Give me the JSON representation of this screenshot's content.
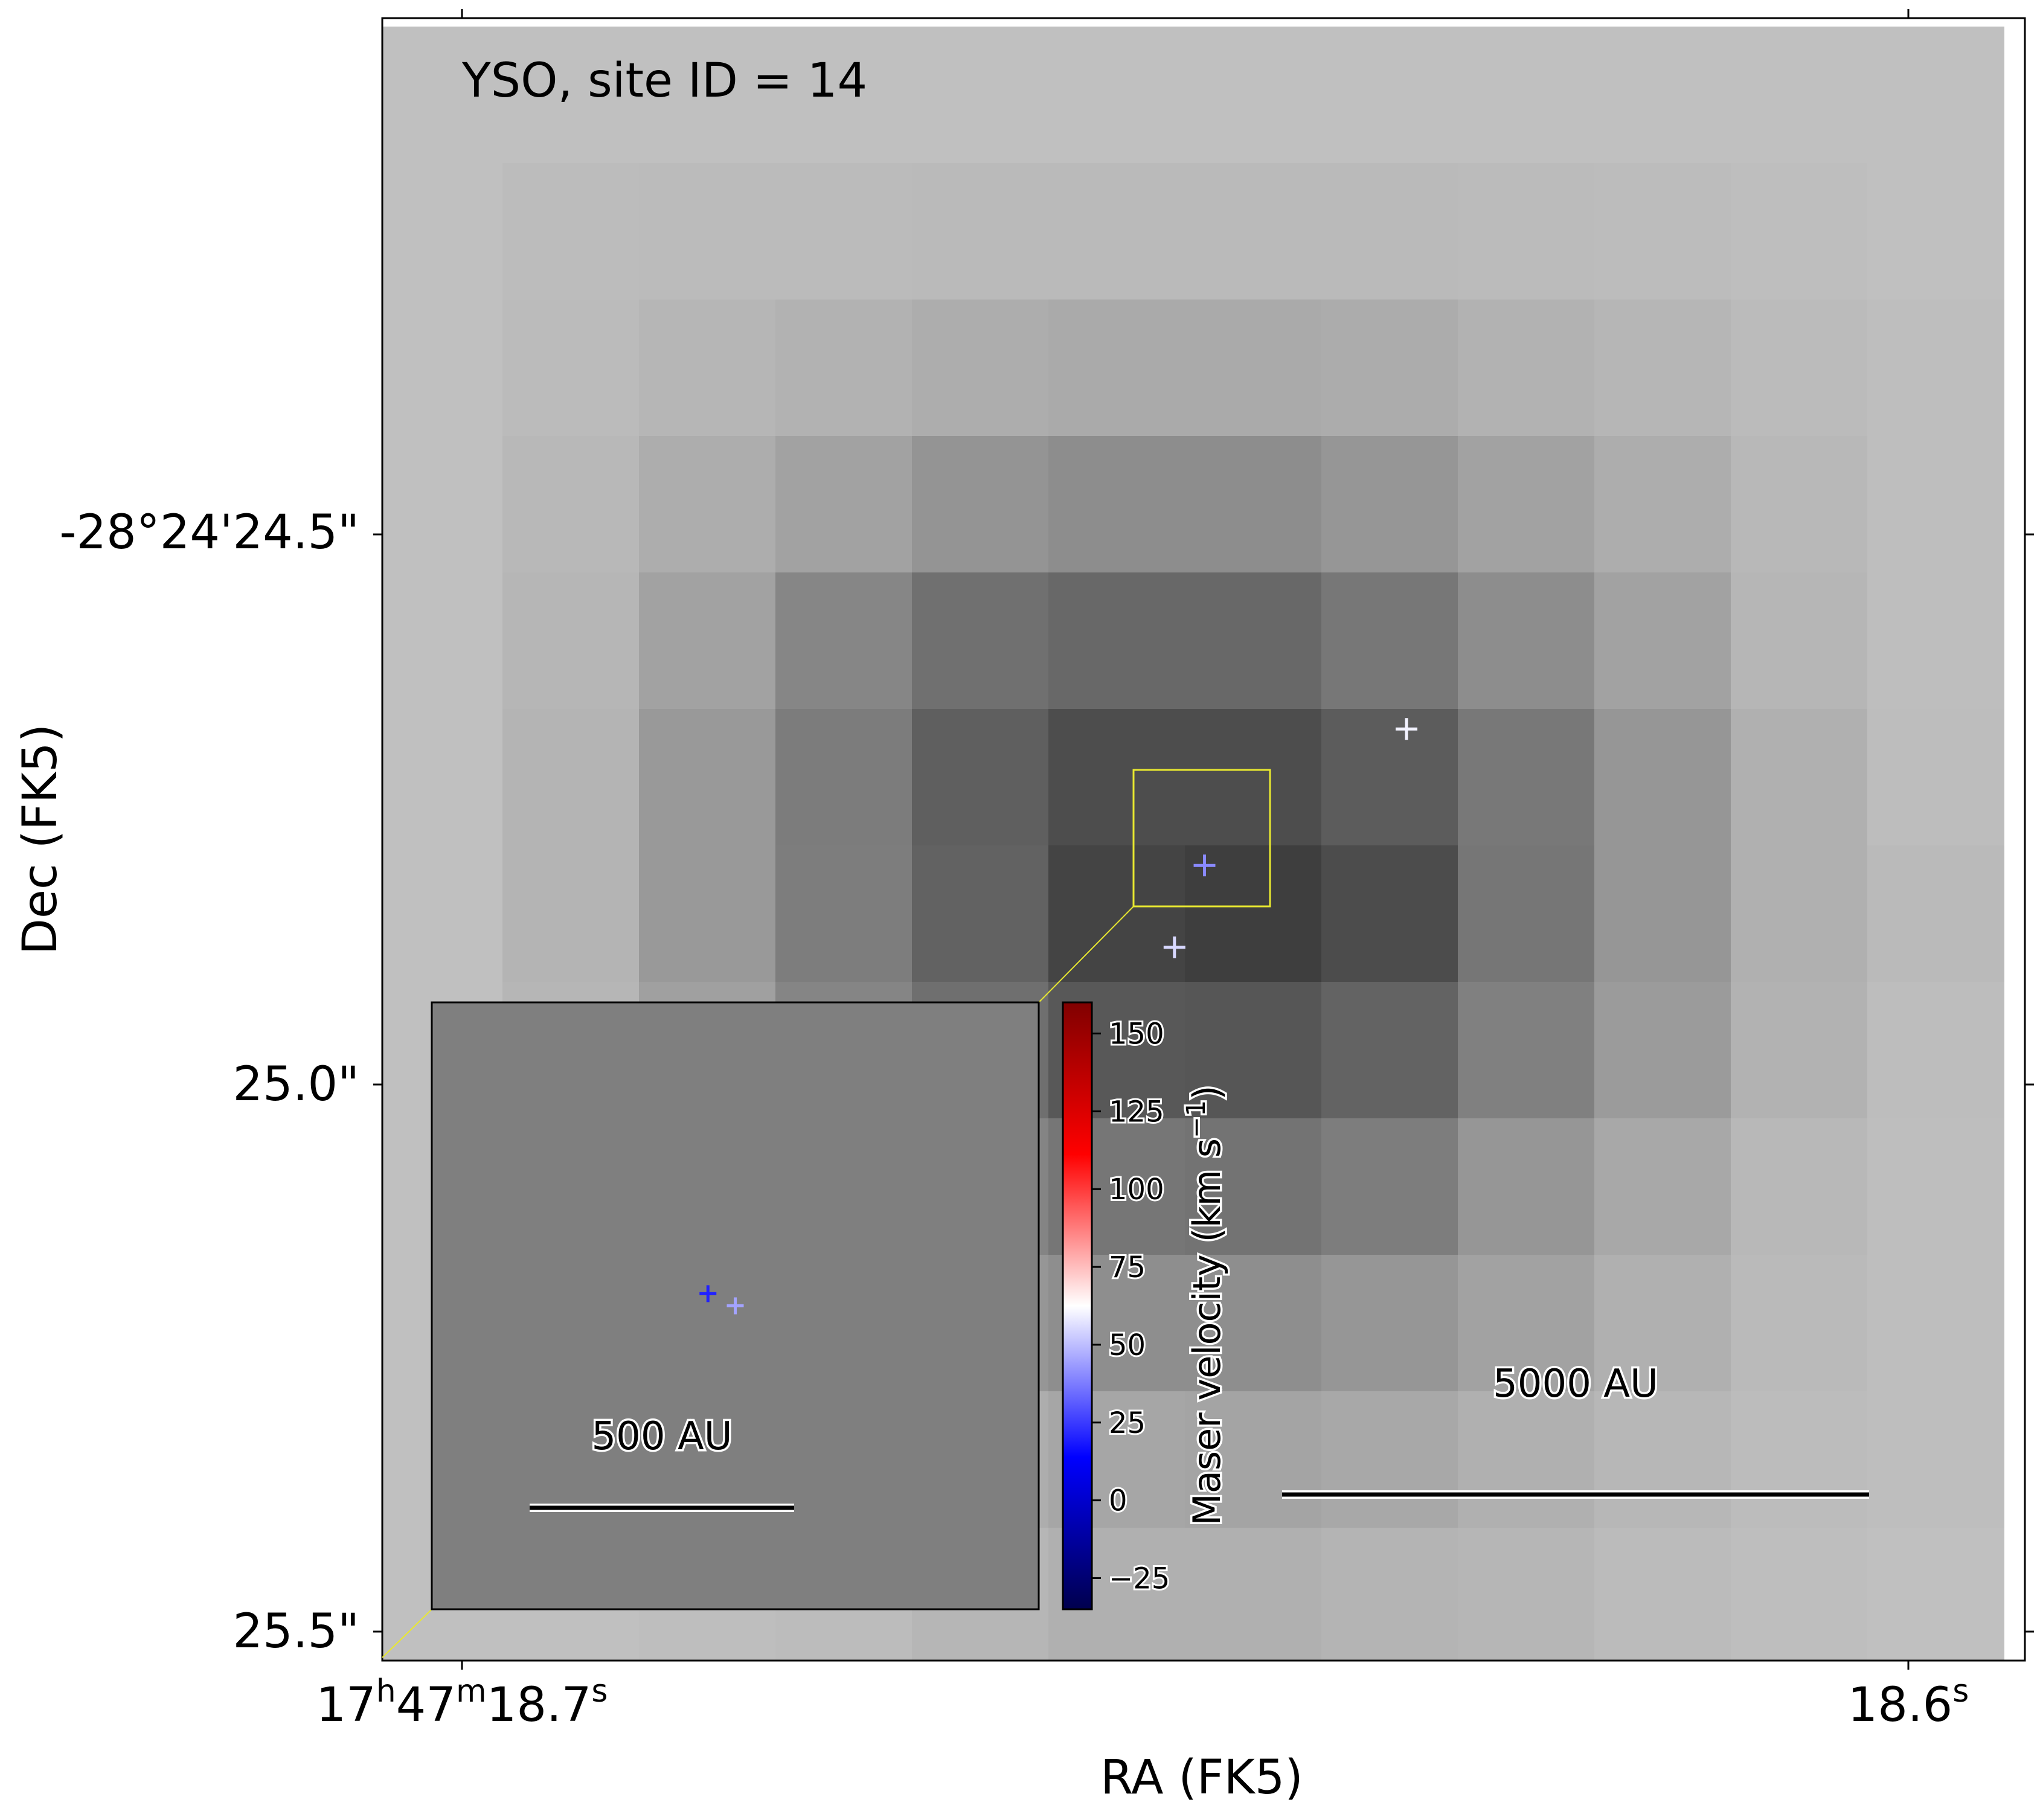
{
  "chart_data": {
    "type": "heatmap",
    "title": "YSO, site ID = 14",
    "xlabel": "RA (FK5)",
    "ylabel": "Dec (FK5)",
    "x_ticks": [
      {
        "label": "17h47m18.7s",
        "h": "17",
        "m": "47",
        "s": "18.7"
      },
      {
        "label": "18.6s",
        "s": "18.6"
      }
    ],
    "y_ticks": [
      "-28°24'24.5\"",
      "25.0\"",
      "25.5\""
    ],
    "image_grid_gray": [
      [
        192,
        192,
        192,
        192,
        192,
        192,
        192,
        192,
        192,
        192,
        192,
        192
      ],
      [
        192,
        188,
        187,
        187,
        186,
        186,
        186,
        186,
        187,
        188,
        190,
        192
      ],
      [
        192,
        187,
        182,
        178,
        173,
        170,
        170,
        172,
        178,
        182,
        187,
        190
      ],
      [
        192,
        184,
        173,
        162,
        148,
        141,
        141,
        150,
        162,
        173,
        184,
        190
      ],
      [
        192,
        182,
        162,
        134,
        112,
        104,
        104,
        119,
        141,
        162,
        182,
        190
      ],
      [
        192,
        180,
        153,
        124,
        95,
        77,
        77,
        92,
        120,
        150,
        176,
        189
      ],
      [
        192,
        180,
        153,
        125,
        98,
        68,
        62,
        76,
        118,
        150,
        176,
        186
      ],
      [
        192,
        182,
        160,
        133,
        111,
        88,
        86,
        99,
        128,
        155,
        178,
        189
      ],
      [
        192,
        185,
        170,
        150,
        132,
        118,
        115,
        125,
        150,
        168,
        184,
        190
      ],
      [
        192,
        187,
        178,
        166,
        150,
        142,
        142,
        150,
        162,
        176,
        186,
        190
      ],
      [
        192,
        190,
        187,
        183,
        173,
        166,
        164,
        168,
        176,
        183,
        188,
        190
      ],
      [
        192,
        192,
        190,
        188,
        182,
        176,
        176,
        180,
        182,
        187,
        190,
        192
      ]
    ],
    "masers_main": [
      {
        "dx": 0.52,
        "dy": 0.7,
        "velocity": 40
      },
      {
        "dx": 2.0,
        "dy": -0.3,
        "velocity": 60
      },
      {
        "dx": 0.3,
        "dy": 1.3,
        "velocity": 55
      }
    ],
    "inset": {
      "masers": [
        {
          "dx": 0.455,
          "dy": 0.48,
          "velocity": 20
        },
        {
          "dx": 0.5,
          "dy": 0.5,
          "velocity": 45
        }
      ],
      "scalebar_label": "500 AU"
    },
    "scalebar_main_label": "5000 AU",
    "colorbar": {
      "label": "Maser velocity (km s⁻¹)",
      "label_main": "Maser velocity (km s",
      "label_exp": "−1",
      "label_close": ")",
      "cmap": "seismic",
      "vmin": -35,
      "vmax": 160,
      "ticks": [
        {
          "value": 150,
          "label": "150"
        },
        {
          "value": 125,
          "label": "125"
        },
        {
          "value": 100,
          "label": "100"
        },
        {
          "value": 75,
          "label": "75"
        },
        {
          "value": 50,
          "label": "50"
        },
        {
          "value": 25,
          "label": "25"
        },
        {
          "value": 0,
          "label": "0"
        },
        {
          "value": -25,
          "label": "−25"
        }
      ]
    },
    "colors": {
      "zoom_box": "#e8e830",
      "inset_bg": "#7f7f7f"
    }
  }
}
